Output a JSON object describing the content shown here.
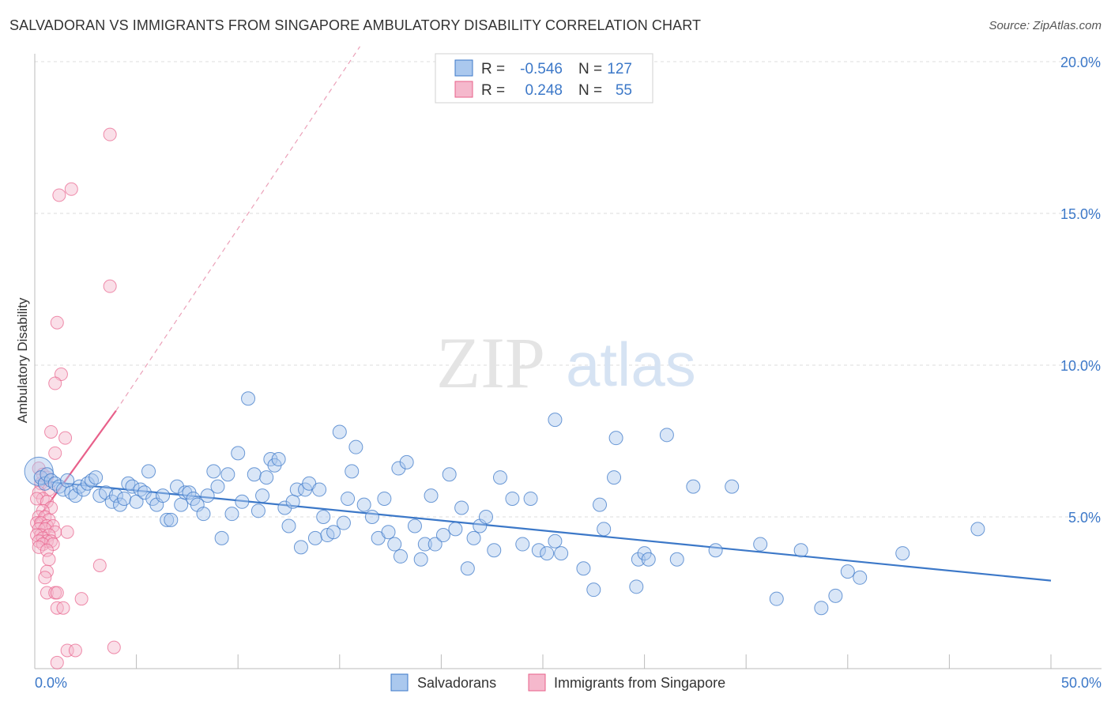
{
  "title": "SALVADORAN VS IMMIGRANTS FROM SINGAPORE AMBULATORY DISABILITY CORRELATION CHART",
  "source": "Source: ZipAtlas.com",
  "watermark": {
    "zip": "ZIP",
    "atlas": "atlas"
  },
  "colors": {
    "blue": "#3c78c8",
    "blue_fill": "#aac8ee",
    "pink": "#e8608a",
    "pink_fill": "#f5b8cc"
  },
  "legend": {
    "rows": [
      {
        "r_label": "R =",
        "r_value": "-0.546",
        "n_label": "N =",
        "n_value": "127"
      },
      {
        "r_label": "R =",
        "r_value": "0.248",
        "n_label": "N =",
        "n_value": "55"
      }
    ]
  },
  "chart_data": {
    "type": "scatter",
    "title": "SALVADORAN VS IMMIGRANTS FROM SINGAPORE AMBULATORY DISABILITY CORRELATION CHART",
    "xlabel": "",
    "ylabel": "Ambulatory Disability",
    "xlim": [
      0,
      50
    ],
    "ylim": [
      0,
      20.5
    ],
    "x_tick_labels": [
      "0.0%",
      "50.0%"
    ],
    "y_ticks": [
      5,
      10,
      15,
      20
    ],
    "y_tick_labels": [
      "5.0%",
      "10.0%",
      "15.0%",
      "20.0%"
    ],
    "grid": true,
    "legend_position": "top-center",
    "series": [
      {
        "name": "Salvadorans",
        "color": "#3c78c8",
        "trend": {
          "x": [
            0,
            50
          ],
          "y": [
            6.2,
            2.9
          ]
        },
        "points": [
          [
            0.2,
            6.5
          ],
          [
            0.3,
            6.3
          ],
          [
            0.5,
            6.1
          ],
          [
            0.6,
            6.4
          ],
          [
            0.8,
            6.2
          ],
          [
            1.0,
            6.1
          ],
          [
            1.2,
            6.0
          ],
          [
            1.4,
            5.9
          ],
          [
            1.6,
            6.2
          ],
          [
            1.8,
            5.8
          ],
          [
            2.0,
            5.7
          ],
          [
            2.2,
            6.0
          ],
          [
            2.4,
            5.9
          ],
          [
            2.6,
            6.1
          ],
          [
            2.8,
            6.2
          ],
          [
            3.0,
            6.3
          ],
          [
            3.2,
            5.7
          ],
          [
            3.5,
            5.8
          ],
          [
            3.8,
            5.5
          ],
          [
            4.0,
            5.7
          ],
          [
            4.2,
            5.4
          ],
          [
            4.4,
            5.6
          ],
          [
            4.6,
            6.1
          ],
          [
            4.8,
            6.0
          ],
          [
            5.0,
            5.5
          ],
          [
            5.2,
            5.9
          ],
          [
            5.4,
            5.8
          ],
          [
            5.6,
            6.5
          ],
          [
            5.8,
            5.6
          ],
          [
            6.0,
            5.4
          ],
          [
            6.3,
            5.7
          ],
          [
            6.5,
            4.9
          ],
          [
            6.7,
            4.9
          ],
          [
            7.0,
            6.0
          ],
          [
            7.2,
            5.4
          ],
          [
            7.4,
            5.8
          ],
          [
            7.6,
            5.8
          ],
          [
            7.8,
            5.6
          ],
          [
            8.0,
            5.4
          ],
          [
            8.3,
            5.1
          ],
          [
            8.5,
            5.7
          ],
          [
            8.8,
            6.5
          ],
          [
            9.0,
            6.0
          ],
          [
            9.2,
            4.3
          ],
          [
            9.5,
            6.4
          ],
          [
            9.7,
            5.1
          ],
          [
            10.0,
            7.1
          ],
          [
            10.2,
            5.5
          ],
          [
            10.5,
            8.9
          ],
          [
            10.8,
            6.4
          ],
          [
            11.0,
            5.2
          ],
          [
            11.2,
            5.7
          ],
          [
            11.4,
            6.3
          ],
          [
            11.6,
            6.9
          ],
          [
            11.8,
            6.7
          ],
          [
            12.0,
            6.9
          ],
          [
            12.3,
            5.3
          ],
          [
            12.5,
            4.7
          ],
          [
            12.7,
            5.5
          ],
          [
            12.9,
            5.9
          ],
          [
            13.1,
            4.0
          ],
          [
            13.3,
            5.9
          ],
          [
            13.5,
            6.1
          ],
          [
            13.8,
            4.3
          ],
          [
            14.0,
            5.9
          ],
          [
            14.2,
            5.0
          ],
          [
            14.4,
            4.4
          ],
          [
            14.7,
            4.5
          ],
          [
            15.0,
            7.8
          ],
          [
            15.2,
            4.8
          ],
          [
            15.4,
            5.6
          ],
          [
            15.6,
            6.5
          ],
          [
            15.8,
            7.3
          ],
          [
            16.2,
            5.4
          ],
          [
            16.6,
            5.0
          ],
          [
            16.9,
            4.3
          ],
          [
            17.2,
            5.6
          ],
          [
            17.4,
            4.5
          ],
          [
            17.7,
            4.1
          ],
          [
            17.9,
            6.6
          ],
          [
            18.0,
            3.7
          ],
          [
            18.3,
            6.8
          ],
          [
            18.7,
            4.7
          ],
          [
            19.0,
            3.6
          ],
          [
            19.2,
            4.1
          ],
          [
            19.5,
            5.7
          ],
          [
            19.7,
            4.1
          ],
          [
            20.1,
            4.4
          ],
          [
            20.4,
            6.4
          ],
          [
            20.7,
            4.6
          ],
          [
            21.0,
            5.3
          ],
          [
            21.3,
            3.3
          ],
          [
            21.6,
            4.3
          ],
          [
            21.9,
            4.7
          ],
          [
            22.2,
            5.0
          ],
          [
            22.6,
            3.9
          ],
          [
            22.9,
            6.3
          ],
          [
            23.5,
            5.6
          ],
          [
            24.0,
            4.1
          ],
          [
            24.4,
            5.6
          ],
          [
            24.8,
            3.9
          ],
          [
            25.2,
            3.8
          ],
          [
            25.6,
            8.2
          ],
          [
            25.6,
            4.2
          ],
          [
            25.9,
            3.8
          ],
          [
            27.0,
            3.3
          ],
          [
            27.5,
            2.6
          ],
          [
            27.8,
            5.4
          ],
          [
            28.0,
            4.6
          ],
          [
            28.5,
            6.3
          ],
          [
            28.6,
            7.6
          ],
          [
            29.6,
            2.7
          ],
          [
            29.7,
            3.6
          ],
          [
            30.0,
            3.8
          ],
          [
            30.2,
            3.6
          ],
          [
            31.1,
            7.7
          ],
          [
            31.6,
            3.6
          ],
          [
            32.4,
            6.0
          ],
          [
            33.5,
            3.9
          ],
          [
            34.3,
            6.0
          ],
          [
            35.7,
            4.1
          ],
          [
            36.5,
            2.3
          ],
          [
            37.7,
            3.9
          ],
          [
            38.7,
            2.0
          ],
          [
            39.4,
            2.4
          ],
          [
            40.0,
            3.2
          ],
          [
            40.6,
            3.0
          ],
          [
            42.7,
            3.8
          ],
          [
            46.4,
            4.6
          ]
        ]
      },
      {
        "name": "Immigrants from Singapore",
        "color": "#e8608a",
        "trend": {
          "x": [
            0,
            4
          ],
          "y": [
            4.8,
            8.5
          ],
          "dashed_extension": {
            "x": [
              4,
              16
            ],
            "y": [
              8.5,
              20.5
            ]
          }
        },
        "points": [
          [
            3.7,
            17.6
          ],
          [
            1.8,
            15.8
          ],
          [
            1.2,
            15.6
          ],
          [
            3.7,
            12.6
          ],
          [
            1.1,
            11.4
          ],
          [
            1.3,
            9.7
          ],
          [
            1.0,
            9.4
          ],
          [
            0.8,
            7.8
          ],
          [
            1.5,
            7.6
          ],
          [
            1.0,
            7.1
          ],
          [
            0.2,
            6.6
          ],
          [
            0.4,
            6.4
          ],
          [
            0.6,
            6.3
          ],
          [
            0.3,
            6.1
          ],
          [
            0.7,
            5.9
          ],
          [
            0.2,
            5.8
          ],
          [
            0.4,
            5.6
          ],
          [
            0.1,
            5.6
          ],
          [
            0.6,
            5.5
          ],
          [
            0.8,
            5.3
          ],
          [
            0.4,
            5.2
          ],
          [
            0.2,
            5.0
          ],
          [
            0.5,
            5.0
          ],
          [
            0.7,
            4.9
          ],
          [
            0.1,
            4.8
          ],
          [
            0.3,
            4.8
          ],
          [
            0.6,
            4.7
          ],
          [
            0.9,
            4.7
          ],
          [
            0.2,
            4.6
          ],
          [
            0.5,
            4.6
          ],
          [
            1.0,
            4.5
          ],
          [
            0.3,
            4.4
          ],
          [
            0.7,
            4.4
          ],
          [
            0.1,
            4.4
          ],
          [
            0.4,
            4.3
          ],
          [
            1.6,
            4.5
          ],
          [
            0.6,
            4.2
          ],
          [
            0.2,
            4.2
          ],
          [
            0.8,
            4.2
          ],
          [
            0.4,
            4.1
          ],
          [
            0.9,
            4.1
          ],
          [
            0.2,
            4.0
          ],
          [
            0.6,
            3.9
          ],
          [
            0.7,
            3.6
          ],
          [
            3.2,
            3.4
          ],
          [
            0.6,
            3.2
          ],
          [
            0.5,
            3.0
          ],
          [
            0.6,
            2.5
          ],
          [
            1.0,
            2.5
          ],
          [
            1.1,
            2.5
          ],
          [
            2.3,
            2.3
          ],
          [
            1.1,
            2.0
          ],
          [
            1.4,
            2.0
          ],
          [
            1.6,
            0.6
          ],
          [
            2.0,
            0.6
          ],
          [
            3.9,
            0.7
          ],
          [
            1.1,
            0.2
          ]
        ]
      }
    ]
  }
}
